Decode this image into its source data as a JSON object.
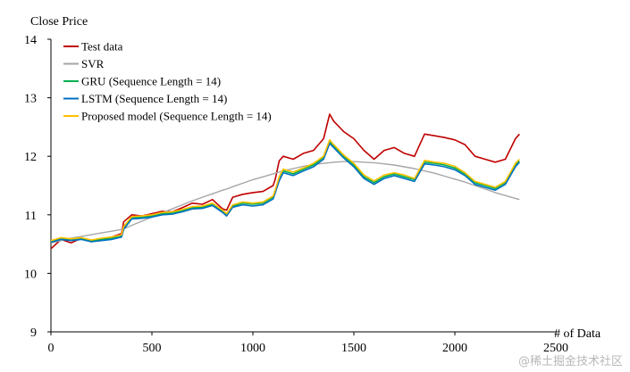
{
  "chart_data": {
    "type": "line",
    "title": "",
    "ylabel": "Close Price",
    "xlabel": "# of Data",
    "xlim": [
      0,
      2500
    ],
    "ylim": [
      9,
      14
    ],
    "xticks": [
      "0",
      "500",
      "1000",
      "1500",
      "2000",
      "2500"
    ],
    "yticks": [
      "9",
      "10",
      "11",
      "12",
      "13",
      "14"
    ],
    "grid": false,
    "legend_position": "top-left",
    "x": [
      0,
      50,
      100,
      150,
      200,
      250,
      300,
      350,
      360,
      400,
      450,
      500,
      550,
      600,
      650,
      700,
      750,
      800,
      850,
      870,
      900,
      950,
      1000,
      1050,
      1100,
      1110,
      1130,
      1150,
      1200,
      1250,
      1300,
      1350,
      1380,
      1400,
      1450,
      1500,
      1550,
      1600,
      1650,
      1700,
      1750,
      1800,
      1850,
      1900,
      1950,
      2000,
      2050,
      2100,
      2150,
      2200,
      2250,
      2300,
      2320
    ],
    "series": [
      {
        "name": "Test data",
        "color": "#c00000",
        "values": [
          10.42,
          10.58,
          10.52,
          10.6,
          10.54,
          10.58,
          10.62,
          10.68,
          10.88,
          11.0,
          10.98,
          11.02,
          11.06,
          11.05,
          11.12,
          11.2,
          11.18,
          11.26,
          11.1,
          11.08,
          11.3,
          11.35,
          11.38,
          11.4,
          11.5,
          11.6,
          11.92,
          12.0,
          11.95,
          12.05,
          12.1,
          12.3,
          12.72,
          12.6,
          12.42,
          12.3,
          12.1,
          11.95,
          12.1,
          12.15,
          12.05,
          12.0,
          12.38,
          12.35,
          12.32,
          12.28,
          12.2,
          12.0,
          11.95,
          11.9,
          11.95,
          12.3,
          12.38
        ]
      },
      {
        "name": "SVR",
        "color": "#a6a6a6",
        "values": [
          10.52,
          10.56,
          10.6,
          10.63,
          10.66,
          10.69,
          10.72,
          10.75,
          10.76,
          10.82,
          10.89,
          10.96,
          11.03,
          11.1,
          11.17,
          11.24,
          11.3,
          11.36,
          11.42,
          11.44,
          11.48,
          11.54,
          11.6,
          11.65,
          11.7,
          11.71,
          11.73,
          11.75,
          11.79,
          11.83,
          11.86,
          11.88,
          11.89,
          11.9,
          11.91,
          11.91,
          11.9,
          11.89,
          11.87,
          11.85,
          11.82,
          11.79,
          11.75,
          11.71,
          11.66,
          11.61,
          11.56,
          11.5,
          11.44,
          11.38,
          11.33,
          11.28,
          11.26
        ]
      },
      {
        "name": "GRU (Sequence Length = 14)",
        "color": "#00b050",
        "values": [
          10.55,
          10.6,
          10.58,
          10.6,
          10.56,
          10.58,
          10.6,
          10.65,
          10.78,
          10.95,
          10.96,
          10.98,
          11.02,
          11.03,
          11.07,
          11.12,
          11.13,
          11.18,
          11.06,
          11.0,
          11.15,
          11.2,
          11.18,
          11.2,
          11.3,
          11.4,
          11.62,
          11.75,
          11.7,
          11.78,
          11.85,
          11.98,
          12.25,
          12.18,
          12.0,
          11.85,
          11.65,
          11.55,
          11.65,
          11.7,
          11.65,
          11.6,
          11.9,
          11.88,
          11.85,
          11.8,
          11.7,
          11.55,
          11.5,
          11.45,
          11.55,
          11.85,
          11.92
        ]
      },
      {
        "name": "LSTM (Sequence Length = 14)",
        "color": "#0070c0",
        "values": [
          10.53,
          10.58,
          10.56,
          10.58,
          10.54,
          10.56,
          10.58,
          10.62,
          10.75,
          10.93,
          10.94,
          10.96,
          11.0,
          11.01,
          11.05,
          11.1,
          11.11,
          11.16,
          11.04,
          10.98,
          11.13,
          11.17,
          11.15,
          11.17,
          11.27,
          11.37,
          11.58,
          11.72,
          11.67,
          11.75,
          11.82,
          11.95,
          12.22,
          12.15,
          11.97,
          11.82,
          11.62,
          11.52,
          11.62,
          11.67,
          11.62,
          11.57,
          11.87,
          11.85,
          11.82,
          11.77,
          11.67,
          11.52,
          11.47,
          11.42,
          11.52,
          11.82,
          11.9
        ]
      },
      {
        "name": "Proposed model (Sequence Length = 14)",
        "color": "#ffc000",
        "values": [
          10.56,
          10.61,
          10.59,
          10.61,
          10.57,
          10.6,
          10.62,
          10.66,
          10.8,
          10.97,
          10.98,
          11.0,
          11.04,
          11.05,
          11.09,
          11.14,
          11.15,
          11.2,
          11.08,
          11.02,
          11.17,
          11.22,
          11.2,
          11.22,
          11.32,
          11.42,
          11.65,
          11.78,
          11.73,
          11.8,
          11.88,
          12.0,
          12.28,
          12.2,
          12.02,
          11.88,
          11.68,
          11.58,
          11.68,
          11.72,
          11.68,
          11.62,
          11.93,
          11.9,
          11.88,
          11.83,
          11.72,
          11.57,
          11.52,
          11.47,
          11.57,
          11.88,
          11.95
        ]
      }
    ]
  },
  "watermark": "@稀土掘金技术社区"
}
